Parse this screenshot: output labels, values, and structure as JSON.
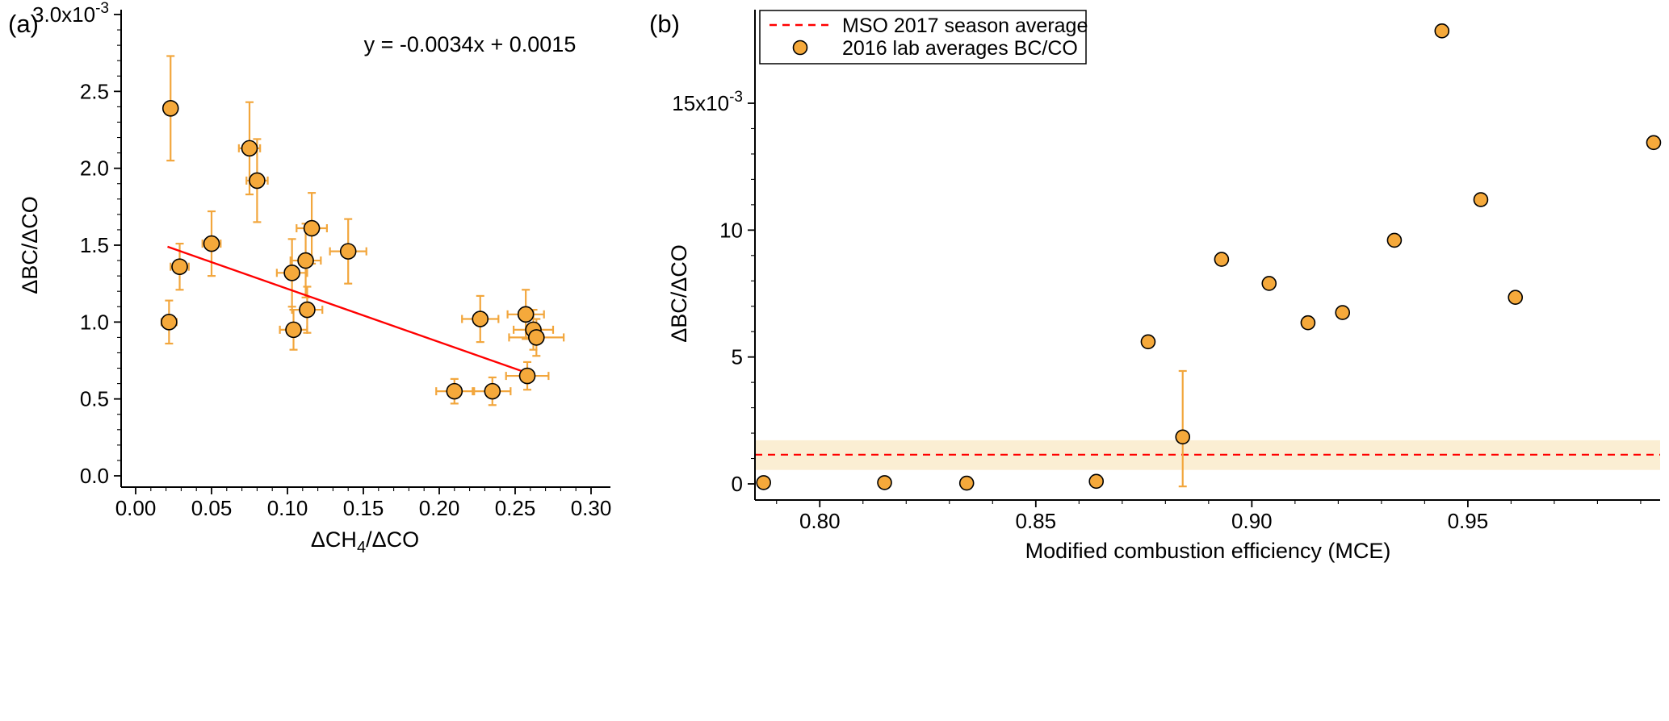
{
  "style": {
    "background": "#FFFFFF",
    "marker_fill": "#F5A93B",
    "marker_stroke": "#000000",
    "errorbar_color": "#F2A63C",
    "fit_color": "#FF0000"
  },
  "chart_data": [
    {
      "id": "a",
      "label": "(a)",
      "type": "scatter",
      "ylabel": "ΔBC/ΔCO",
      "xlabel": [
        {
          "t": "ΔCH"
        },
        {
          "t": "4",
          "sub": true
        },
        {
          "t": "/ΔCO"
        }
      ],
      "xlim": [
        0,
        0.3
      ],
      "ylim": [
        0,
        3.0
      ],
      "y_unit": "x10^-3",
      "x_ticks": [
        {
          "v": 0.0,
          "l": "0.00"
        },
        {
          "v": 0.05,
          "l": "0.05"
        },
        {
          "v": 0.1,
          "l": "0.10"
        },
        {
          "v": 0.15,
          "l": "0.15"
        },
        {
          "v": 0.2,
          "l": "0.20"
        },
        {
          "v": 0.25,
          "l": "0.25"
        },
        {
          "v": 0.3,
          "l": "0.30"
        }
      ],
      "y_ticks": [
        {
          "v": 0.0,
          "l": "0.0"
        },
        {
          "v": 0.5,
          "l": "0.5"
        },
        {
          "v": 1.0,
          "l": "1.0"
        },
        {
          "v": 1.5,
          "l": "1.5"
        },
        {
          "v": 2.0,
          "l": "2.0"
        },
        {
          "v": 2.5,
          "l": "2.5"
        },
        {
          "v": 3.0,
          "l": "3.0x10",
          "exp": "-3"
        }
      ],
      "x_minor_step": 0.01,
      "y_minor_step": 0.1,
      "annotation": {
        "text": "y = -0.0034x + 0.0015",
        "color": "#FF0000"
      },
      "fit_line": {
        "x1": 0.021,
        "y1": 1.49,
        "x2": 0.262,
        "y2": 0.655,
        "color": "#FF0000"
      },
      "points": [
        {
          "x": 0.023,
          "y": 2.39,
          "ex": 0.004,
          "ey": 0.34
        },
        {
          "x": 0.029,
          "y": 1.36,
          "ex": 0.006,
          "ey": 0.15
        },
        {
          "x": 0.022,
          "y": 1.0,
          "ex": 0.005,
          "ey": 0.14
        },
        {
          "x": 0.05,
          "y": 1.51,
          "ex": 0.006,
          "ey": 0.21
        },
        {
          "x": 0.075,
          "y": 2.13,
          "ex": 0.007,
          "ey": 0.3
        },
        {
          "x": 0.08,
          "y": 1.92,
          "ex": 0.007,
          "ey": 0.27
        },
        {
          "x": 0.103,
          "y": 1.32,
          "ex": 0.01,
          "ey": 0.22
        },
        {
          "x": 0.104,
          "y": 0.95,
          "ex": 0.009,
          "ey": 0.13
        },
        {
          "x": 0.112,
          "y": 1.4,
          "ex": 0.01,
          "ey": 0.24
        },
        {
          "x": 0.116,
          "y": 1.61,
          "ex": 0.01,
          "ey": 0.23
        },
        {
          "x": 0.113,
          "y": 1.08,
          "ex": 0.01,
          "ey": 0.15
        },
        {
          "x": 0.14,
          "y": 1.46,
          "ex": 0.012,
          "ey": 0.21
        },
        {
          "x": 0.21,
          "y": 0.55,
          "ex": 0.012,
          "ey": 0.08
        },
        {
          "x": 0.227,
          "y": 1.02,
          "ex": 0.012,
          "ey": 0.15
        },
        {
          "x": 0.235,
          "y": 0.55,
          "ex": 0.012,
          "ey": 0.09
        },
        {
          "x": 0.257,
          "y": 1.05,
          "ex": 0.012,
          "ey": 0.16
        },
        {
          "x": 0.262,
          "y": 0.95,
          "ex": 0.013,
          "ey": 0.13
        },
        {
          "x": 0.264,
          "y": 0.9,
          "ex": 0.018,
          "ey": 0.12
        },
        {
          "x": 0.258,
          "y": 0.65,
          "ex": 0.014,
          "ey": 0.09
        }
      ]
    },
    {
      "id": "b",
      "label": "(b)",
      "type": "scatter",
      "ylabel": "ΔBC/ΔCO",
      "xlabel": [
        {
          "t": "Modified combustion efficiency (MCE)"
        }
      ],
      "xlim": [
        0.785,
        0.9945
      ],
      "ylim": [
        0,
        15
      ],
      "y_unit": "x10^-3",
      "x_ticks": [
        {
          "v": 0.8,
          "l": "0.80"
        },
        {
          "v": 0.85,
          "l": "0.85"
        },
        {
          "v": 0.9,
          "l": "0.90"
        },
        {
          "v": 0.95,
          "l": "0.95"
        }
      ],
      "y_ticks": [
        {
          "v": 0,
          "l": "0"
        },
        {
          "v": 5,
          "l": "5"
        },
        {
          "v": 10,
          "l": "10"
        },
        {
          "v": 15,
          "l": "15x10",
          "exp": "-3"
        }
      ],
      "x_minor_step": 0.01,
      "y_minor_step": 1,
      "band": {
        "low": 0.55,
        "high": 1.72,
        "line": 1.15,
        "band_color": "#FBEED3",
        "line_color": "#FF0000"
      },
      "legend": {
        "items": [
          {
            "type": "dash",
            "color": "#FF0000",
            "label": "MSO 2017 season average"
          },
          {
            "type": "marker",
            "label": "2016 lab averages  BC/CO"
          }
        ]
      },
      "points": [
        {
          "x": 0.787,
          "y": 0.05
        },
        {
          "x": 0.815,
          "y": 0.05
        },
        {
          "x": 0.834,
          "y": 0.03
        },
        {
          "x": 0.864,
          "y": 0.1
        },
        {
          "x": 0.876,
          "y": 5.6
        },
        {
          "x": 0.884,
          "y": 1.85,
          "eyp": 2.6,
          "eym": 1.95
        },
        {
          "x": 0.893,
          "y": 8.85
        },
        {
          "x": 0.904,
          "y": 7.9
        },
        {
          "x": 0.913,
          "y": 6.35
        },
        {
          "x": 0.921,
          "y": 6.75
        },
        {
          "x": 0.933,
          "y": 9.6
        },
        {
          "x": 0.944,
          "y": 17.85
        },
        {
          "x": 0.953,
          "y": 11.2
        },
        {
          "x": 0.961,
          "y": 7.35
        },
        {
          "x": 0.993,
          "y": 13.45
        }
      ]
    }
  ]
}
